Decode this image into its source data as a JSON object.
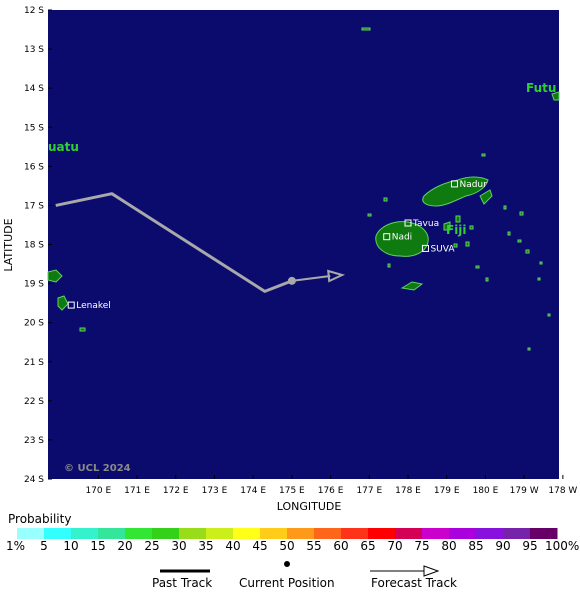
{
  "map": {
    "lat_labels": [
      "12 S",
      "13 S",
      "14 S",
      "15 S",
      "16 S",
      "17 S",
      "18 S",
      "19 S",
      "20 S",
      "21 S",
      "22 S",
      "23 S",
      "24 S"
    ],
    "lon_labels": [
      "170 E",
      "171 E",
      "172 E",
      "173 E",
      "174 E",
      "175 E",
      "176 E",
      "177 E",
      "178 E",
      "179 E",
      "180 E",
      "179 W",
      "178 W"
    ],
    "xlabel": "LONGITUDE",
    "ylabel": "LATITUDE",
    "copyright": "© UCL 2024",
    "colors": {
      "ocean": "#0b0b6e",
      "land": "#0f7a0f",
      "coast": "#5fd35f",
      "track": "#a9a9a9"
    },
    "places": [
      {
        "name": "Nadi",
        "lat": -17.8,
        "lon": 177.45
      },
      {
        "name": "Tavua",
        "lat": -17.45,
        "lon": 178.0
      },
      {
        "name": "Nadur",
        "lat": -16.45,
        "lon": 179.2
      },
      {
        "name": "SUVA",
        "lat": -18.1,
        "lon": 178.45
      },
      {
        "name": "Lenakel",
        "lat": -19.55,
        "lon": 169.3
      }
    ],
    "regions": [
      "Fiji",
      "uatu",
      "Futu"
    ],
    "track": {
      "past": [
        [
          168.9,
          -17.0
        ],
        [
          170.35,
          -16.7
        ],
        [
          174.3,
          -19.2
        ],
        [
          175.0,
          -18.93
        ]
      ],
      "current": [
        175.0,
        -18.93
      ],
      "forecast": [
        [
          175.0,
          -18.93
        ],
        [
          176.3,
          -18.78
        ]
      ]
    }
  },
  "legend": {
    "title": "Probability",
    "labels": [
      "1%",
      "5",
      "10",
      "15",
      "20",
      "25",
      "30",
      "35",
      "40",
      "45",
      "50",
      "55",
      "60",
      "65",
      "70",
      "75",
      "80",
      "85",
      "90",
      "95",
      "100%"
    ],
    "colors": [
      "#99ffff",
      "#33ffff",
      "#33f2cc",
      "#33e699",
      "#33e633",
      "#33d11a",
      "#99dd1a",
      "#ccee1a",
      "#ffff1a",
      "#ffcc1a",
      "#ff991a",
      "#ff661a",
      "#ff331a",
      "#ff0000",
      "#d40055",
      "#cc00cc",
      "#aa00dd",
      "#8811dd",
      "#7722aa",
      "#660066"
    ]
  },
  "key": {
    "past_track": "Past Track",
    "current_position": "Current Position",
    "forecast_track": "Forecast Track"
  }
}
